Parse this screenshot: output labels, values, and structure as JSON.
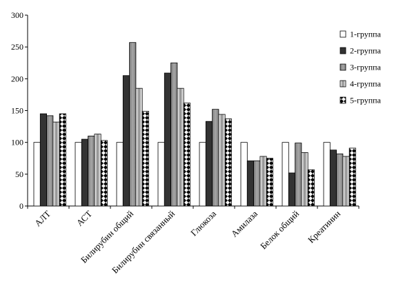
{
  "chart_data": {
    "type": "bar",
    "title": "",
    "xlabel": "",
    "ylabel": "",
    "ylim": [
      0,
      300
    ],
    "yticks": [
      0,
      50,
      100,
      150,
      200,
      250,
      300
    ],
    "grid": false,
    "legend_position": "right",
    "categories": [
      "АЛТ",
      "АСТ",
      "Билирубин общий",
      "Билирубин связанный",
      "Глюкоза",
      "Амилаза",
      "Белок общий",
      "Креатинин"
    ],
    "series": [
      {
        "name": "1-группа",
        "style": "white",
        "values": [
          100,
          100,
          100,
          100,
          100,
          100,
          100,
          100
        ]
      },
      {
        "name": "2-группа",
        "style": "dark",
        "values": [
          145,
          105,
          205,
          209,
          133,
          71,
          52,
          88
        ]
      },
      {
        "name": "3-группа",
        "style": "gray",
        "values": [
          142,
          110,
          257,
          225,
          152,
          71,
          99,
          82
        ]
      },
      {
        "name": "4-группа",
        "style": "gradient",
        "values": [
          132,
          113,
          185,
          185,
          144,
          78,
          84,
          78
        ]
      },
      {
        "name": "5-группа",
        "style": "checker",
        "values": [
          145,
          103,
          149,
          162,
          137,
          75,
          57,
          91
        ]
      }
    ]
  }
}
